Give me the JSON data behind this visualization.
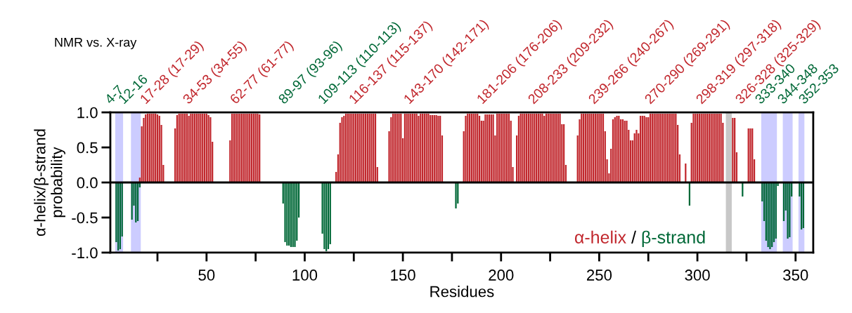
{
  "chart_data": {
    "type": "bar",
    "xlabel": "Residues",
    "ylabel": "α-helix/β-strand\nprobability",
    "xlim": [
      1,
      359
    ],
    "ylim": [
      -1,
      1
    ],
    "xticks": [
      {
        "value": 25,
        "label": null
      },
      50,
      {
        "value": 75,
        "label": null
      },
      100,
      {
        "value": 125,
        "label": null
      },
      150,
      {
        "value": 175,
        "label": null
      },
      200,
      {
        "value": 225,
        "label": null
      },
      250,
      {
        "value": 275,
        "label": null
      },
      300,
      {
        "value": 325,
        "label": null
      },
      350
    ],
    "yticks": [
      {
        "value": -1,
        "label": "-1.0"
      },
      {
        "value": -0.5,
        "label": "-0.5"
      },
      {
        "value": 0,
        "label": "0.0"
      },
      {
        "value": 0.5,
        "label": "0.5"
      },
      {
        "value": 1,
        "label": "1.0"
      }
    ],
    "grid": false,
    "legend": "bottom right",
    "series": [
      {
        "name": "α-helix",
        "color": "#c1272d",
        "x": [
          16,
          17,
          18,
          19,
          20,
          21,
          22,
          23,
          24,
          25,
          26,
          27,
          28,
          34,
          35,
          36,
          37,
          38,
          39,
          40,
          41,
          42,
          43,
          44,
          45,
          46,
          47,
          48,
          49,
          50,
          51,
          52,
          53,
          62,
          63,
          64,
          65,
          66,
          67,
          68,
          69,
          70,
          71,
          72,
          73,
          74,
          75,
          76,
          77,
          116,
          117,
          118,
          119,
          120,
          121,
          122,
          123,
          124,
          125,
          126,
          127,
          128,
          129,
          130,
          131,
          132,
          133,
          134,
          135,
          136,
          137,
          143,
          144,
          145,
          146,
          147,
          148,
          149,
          150,
          151,
          152,
          153,
          154,
          155,
          156,
          157,
          158,
          159,
          160,
          161,
          162,
          163,
          164,
          165,
          166,
          167,
          168,
          169,
          170,
          181,
          182,
          183,
          184,
          185,
          186,
          187,
          188,
          189,
          190,
          191,
          192,
          193,
          194,
          195,
          196,
          197,
          198,
          199,
          200,
          201,
          202,
          203,
          204,
          205,
          206,
          208,
          209,
          210,
          211,
          212,
          213,
          214,
          215,
          216,
          217,
          218,
          219,
          220,
          221,
          222,
          223,
          224,
          225,
          226,
          227,
          228,
          229,
          230,
          231,
          232,
          233,
          239,
          240,
          241,
          242,
          243,
          244,
          245,
          246,
          247,
          248,
          249,
          250,
          251,
          252,
          253,
          254,
          255,
          256,
          257,
          258,
          259,
          260,
          261,
          262,
          263,
          264,
          265,
          266,
          267,
          268,
          269,
          270,
          271,
          272,
          273,
          274,
          275,
          276,
          277,
          278,
          279,
          280,
          281,
          282,
          283,
          284,
          285,
          286,
          287,
          288,
          289,
          290,
          291,
          294,
          297,
          298,
          299,
          300,
          301,
          302,
          303,
          304,
          305,
          306,
          307,
          308,
          309,
          310,
          311,
          312,
          313,
          318,
          319,
          320,
          326,
          327,
          328,
          329
        ],
        "values": [
          0.07,
          0.8,
          0.92,
          0.97,
          0.98,
          0.98,
          0.98,
          0.98,
          0.98,
          0.97,
          0.95,
          0.82,
          0.25,
          0.77,
          0.96,
          0.98,
          0.98,
          0.98,
          0.98,
          0.98,
          0.95,
          0.98,
          0.98,
          0.98,
          0.98,
          0.98,
          0.98,
          0.98,
          0.98,
          0.98,
          0.96,
          0.93,
          0.58,
          0.6,
          0.98,
          0.98,
          0.98,
          0.98,
          0.98,
          0.98,
          0.98,
          0.98,
          0.98,
          0.98,
          0.98,
          0.98,
          0.98,
          0.98,
          0.97,
          0.15,
          0.4,
          0.85,
          0.93,
          0.95,
          0.98,
          0.98,
          0.98,
          0.98,
          0.98,
          0.98,
          0.98,
          0.98,
          0.98,
          0.98,
          0.98,
          0.98,
          0.98,
          0.98,
          0.98,
          0.98,
          0.22,
          0.73,
          0.93,
          0.98,
          0.98,
          0.98,
          0.98,
          0.98,
          0.63,
          0.98,
          0.98,
          0.98,
          0.98,
          0.98,
          0.98,
          0.98,
          0.95,
          0.98,
          0.98,
          0.98,
          0.98,
          0.98,
          0.96,
          0.96,
          0.96,
          0.96,
          0.95,
          0.95,
          0.67,
          0.73,
          0.95,
          0.98,
          0.98,
          0.98,
          0.98,
          0.98,
          0.98,
          0.95,
          0.88,
          0.88,
          0.97,
          0.97,
          0.97,
          0.97,
          0.97,
          0.67,
          0.98,
          0.98,
          0.98,
          0.98,
          0.98,
          0.98,
          0.98,
          0.88,
          0.22,
          0.67,
          0.95,
          0.98,
          0.98,
          0.98,
          0.98,
          0.98,
          0.98,
          0.98,
          0.98,
          0.98,
          0.98,
          0.98,
          0.98,
          0.95,
          0.98,
          0.98,
          0.98,
          0.98,
          0.98,
          0.98,
          0.98,
          0.98,
          0.83,
          0.83,
          0.25,
          0.67,
          0.9,
          0.98,
          0.98,
          0.98,
          0.98,
          0.98,
          0.98,
          0.98,
          0.98,
          0.98,
          0.98,
          0.98,
          0.98,
          0.73,
          0.33,
          0.13,
          0.48,
          0.9,
          0.93,
          0.95,
          0.95,
          0.9,
          0.9,
          0.88,
          0.88,
          0.75,
          0.6,
          0.6,
          0.7,
          0.75,
          0.7,
          0.95,
          0.95,
          0.95,
          0.93,
          0.93,
          0.98,
          0.98,
          0.98,
          0.98,
          0.98,
          0.98,
          0.98,
          0.98,
          0.98,
          0.98,
          0.98,
          0.98,
          0.98,
          0.98,
          0.82,
          0.4,
          0.27,
          0.85,
          0.98,
          0.98,
          0.98,
          0.98,
          0.98,
          0.98,
          0.98,
          0.98,
          0.98,
          0.98,
          0.98,
          0.98,
          0.98,
          0.98,
          0.98,
          0.85,
          0.92,
          0.92,
          0.43,
          0.77,
          0.77,
          0.77,
          0.33
        ]
      },
      {
        "name": "β-strand",
        "color": "#006837",
        "x": [
          4,
          5,
          6,
          7,
          12,
          13,
          14,
          15,
          16,
          89,
          90,
          91,
          92,
          93,
          94,
          95,
          96,
          97,
          109,
          110,
          111,
          112,
          113,
          177,
          178,
          296,
          323,
          333,
          334,
          335,
          336,
          337,
          338,
          339,
          340,
          341,
          344,
          345,
          346,
          347,
          348,
          352,
          353,
          354
        ],
        "values": [
          -0.85,
          -0.97,
          -0.95,
          -0.77,
          -0.53,
          -0.33,
          -0.57,
          -0.55,
          -0.07,
          -0.3,
          -0.85,
          -0.9,
          -0.9,
          -0.92,
          -0.92,
          -0.92,
          -0.83,
          -0.5,
          -0.73,
          -0.95,
          -0.98,
          -0.95,
          -0.88,
          -0.37,
          -0.3,
          -0.33,
          -0.2,
          -0.27,
          -0.55,
          -0.83,
          -0.92,
          -0.95,
          -0.92,
          -0.85,
          -0.8,
          -0.05,
          -0.55,
          -0.4,
          -0.8,
          -0.78,
          -0.2,
          -0.2,
          -0.67,
          -0.65
        ]
      }
    ],
    "ref_lines": [
      {
        "axis": "y",
        "value": 0,
        "color": "#000000"
      }
    ],
    "bands": [
      {
        "axis": "x",
        "from": 3.5,
        "to": 7.5,
        "color": "#ccccff"
      },
      {
        "axis": "x",
        "from": 11.5,
        "to": 16.5,
        "color": "#ccccff"
      },
      {
        "axis": "x",
        "from": 314.5,
        "to": 317.5,
        "color": "#c8c8c8"
      },
      {
        "axis": "x",
        "from": 332.5,
        "to": 340.5,
        "color": "#ccccff"
      },
      {
        "axis": "x",
        "from": 343.5,
        "to": 348.5,
        "color": "#ccccff"
      },
      {
        "axis": "x",
        "from": 351.5,
        "to": 354.5,
        "color": "#ccccff"
      }
    ],
    "annotations": [
      "NMR vs. X-ray",
      "/",
      "4-7",
      "12-16",
      "17-28 (17-29)",
      "34-53 (34-55)",
      "62-77 (61-77)",
      "89-97 (93-96)",
      "109-113 (110-113)",
      "116-137 (115-137)",
      "143-170 (142-171)",
      "181-206 (176-206)",
      "208-233 (209-232)",
      "239-266 (240-267)",
      "270-290 (269-291)",
      "298-319 (297-318)",
      "326-328 (325-329)",
      "333-340",
      "344-348",
      "352-353"
    ]
  }
}
